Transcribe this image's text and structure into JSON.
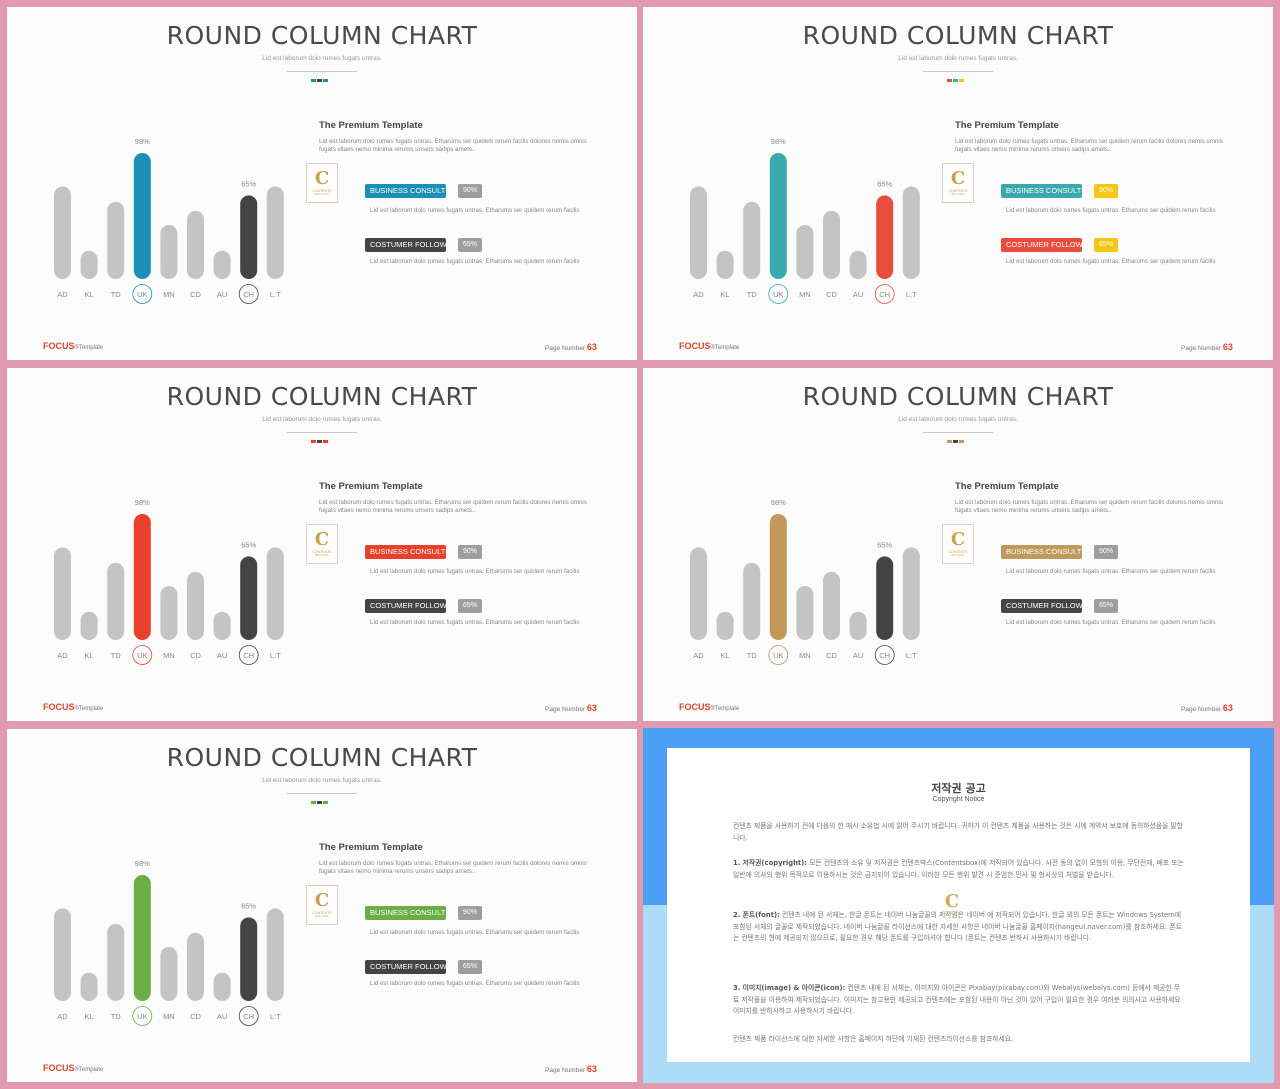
{
  "slide_common": {
    "title": "ROUND COLUMN CHART",
    "subtitle": "Lid est laborum dolo rumes fugats untras.",
    "section_title": "The Premium Template",
    "section_text": "Lid est laborum dolo rumes fugats untras. Etharums ser quidem rerum facilis dolores nemis omnis fugats vitaes nemo minima rerums unsers sadips amets..",
    "label1": "BUSINESS CONSULTING",
    "label2": "COSTUMER FOLLOW",
    "label1_text": "Lid est laborum dolo rumes fugats untras. Etharums ser quidem rerum facilis",
    "label2_text": "Lid est laborum dolo rumes fugats untras. Etharums ser quidem rerum facilis",
    "logo_letter": "C",
    "logo_word": "CONTENTS",
    "logo_tag": "BOX LOGO",
    "brand": "FOCUS",
    "brand_suffix": "®Template",
    "page_label": "Page Number",
    "page_number": "63"
  },
  "chart_data": {
    "type": "bar",
    "categories": [
      "AD",
      "KL",
      "TD",
      "UK",
      "MN",
      "CD",
      "AU",
      "CH",
      "L:T"
    ],
    "values": [
      72,
      22,
      60,
      98,
      42,
      53,
      22,
      65,
      72
    ],
    "highlighted": {
      "UK": "98%",
      "CH": "65%"
    },
    "pct1": "90%",
    "pct2": "65%"
  },
  "themes": [
    {
      "accent": "#1b8fb5",
      "dark": "#444444",
      "pct1": "#9e9e9e",
      "pct2": "#9e9e9e",
      "dots": [
        "#1b8fb5",
        "#444444",
        "#1b8fb5"
      ]
    },
    {
      "accent": "#3aa9ad",
      "dark": "#e74c3c",
      "pct1": "#f5c518",
      "pct2": "#f5c518",
      "dots": [
        "#e74c3c",
        "#3aa9ad",
        "#f5c518"
      ]
    },
    {
      "accent": "#e7412b",
      "dark": "#444444",
      "pct1": "#9e9e9e",
      "pct2": "#9e9e9e",
      "dots": [
        "#e7412b",
        "#444444",
        "#e7412b"
      ]
    },
    {
      "accent": "#c19a5b",
      "dark": "#444444",
      "pct1": "#9e9e9e",
      "pct2": "#9e9e9e",
      "dots": [
        "#c19a5b",
        "#444444",
        "#c19a5b"
      ]
    },
    {
      "accent": "#6cad45",
      "dark": "#444444",
      "pct1": "#9e9e9e",
      "pct2": "#9e9e9e",
      "dots": [
        "#6cad45",
        "#444444",
        "#6cad45"
      ]
    }
  ],
  "copyright": {
    "title": "저작권 공고",
    "subtitle": "Copyright Notice",
    "intro": "컨텐츠 제품을 사용하기 전에 다음의 한 매시 소유법 시에 읽어 주시기 바랍니다. 귀하가 이 컨텐츠 제품을 사용하는 것은 시에 계약서 보호에 동의하셨음을 말합니다.",
    "p1_head": "1. 저작권(copyright):",
    "p1": " 모든 컨텐츠의 소유 및 저작권은 컨텐츠박스(Contentsbox)에 저작되어 있습니다. 사전 동의 없이 모형의 이용, 무단전재, 배포 또는 일반에 의사의 행위 목적으로 이용하시는 것은 금지되어 있습니다. 이러한 모든 행위 발견 시 준엄한 민사 및 형사상의 처벌을 받습니다.",
    "p2_head": "2. 폰트(font):",
    "p2": " 컨텐츠 내에 된 서체는, 한글 폰트는 네이버 나눔글꼴의 저작권은 네이버 에 저작되어 있습니다. 한글 외의 모든 폰트는 Windows System에 포함된 서체의 글꼴로 제작되었습니다. 네이버 나눔글꼴 라이선스에 대한 자세한 사항은 네이버 나눔글꼴 홈페이지(hangeul.naver.com)를 참조하세요. 폰트는 컨텐츠의 형에 제공되지 않으므로, 필요한 경우 해당 폰트를 구입하셔야 합니다 (폰트는 컨텐츠 반하시 사용하시기 바랍니다.",
    "p3_head": "3. 이미지(image) & 아이콘(icon):",
    "p3": " 컨텐츠 내에 된 서체는, 이미지와 아이콘은 Pixabay(pixabay.com)와 Webalys(webalys.com) 등에서 제공한 무료 저작물을 이용하여 제작되었습니다. 이미지는 참고용만 제공되고 컨텐츠에는 포함된 내용이 아닌 것이 있어 구입이 필요한 경우 여러분 의의사고 사용하세요 이미지를 반하시하고 사용하시기 바랍니다.",
    "outro": "컨텐츠 제품 라이선스에 대한 자세한 사항은 홈페이지 하단에 기재된 컨텐츠라이선스를 참조하세요.",
    "logo_letter": "C",
    "logo_word": "CONTENTS"
  }
}
